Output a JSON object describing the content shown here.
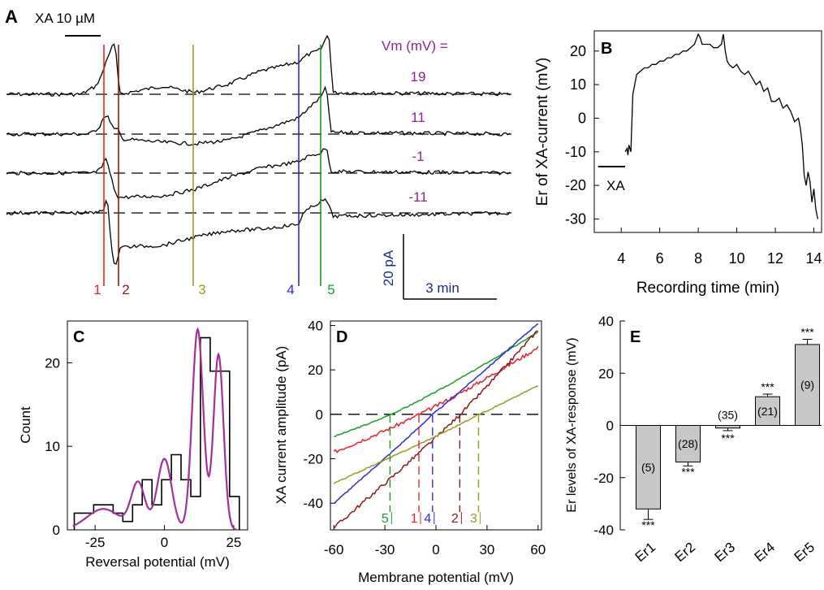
{
  "chart_data": [
    {
      "panel": "A",
      "type": "line",
      "title": "",
      "drug_label": "XA 10 µM",
      "vm_heading": "Vm (mV) =",
      "series": [
        {
          "vm": "19"
        },
        {
          "vm": "11"
        },
        {
          "vm": "-1"
        },
        {
          "vm": "-11"
        }
      ],
      "markers": [
        {
          "label": "1",
          "color": "#e8202a"
        },
        {
          "label": "2",
          "color": "#8b1a1a"
        },
        {
          "label": "3",
          "color": "#9a9a1c"
        },
        {
          "label": "4",
          "color": "#2b2bd8"
        },
        {
          "label": "5",
          "color": "#1a9a2a"
        }
      ],
      "scalebar": {
        "y_label": "20 pA",
        "x_label": "3 min"
      },
      "vm_color": "#8e248e",
      "scalebar_color": "#1a2a8a"
    },
    {
      "panel": "B",
      "type": "line",
      "xlabel": "Recording time (min)",
      "ylabel": "Er of XA-current (mV)",
      "xlim": [
        2.6,
        14.4
      ],
      "ylim": [
        -34,
        26
      ],
      "xticks": [
        "4",
        "6",
        "8",
        "10",
        "12",
        "14"
      ],
      "yticks": [
        "20",
        "10",
        "0",
        "-10",
        "-20",
        "-30"
      ],
      "drug_label": "XA",
      "drug_bar": [
        2.8,
        4.2
      ],
      "x": [
        4.2,
        4.3,
        4.35,
        4.4,
        4.45,
        4.5,
        4.6,
        4.8,
        5.0,
        5.2,
        5.4,
        5.6,
        5.8,
        6.0,
        6.2,
        6.4,
        6.6,
        6.8,
        7.0,
        7.2,
        7.4,
        7.6,
        7.8,
        8.0,
        8.1,
        8.2,
        8.3,
        8.4,
        8.6,
        8.8,
        9.0,
        9.2,
        9.3,
        9.4,
        9.5,
        9.6,
        9.8,
        10.0,
        10.2,
        10.4,
        10.6,
        10.8,
        11.0,
        11.2,
        11.4,
        11.6,
        11.8,
        12.0,
        12.2,
        12.4,
        12.6,
        12.8,
        13.0,
        13.2,
        13.3,
        13.4,
        13.5,
        13.6,
        13.7,
        13.8,
        13.9,
        14.0,
        14.1,
        14.2
      ],
      "y": [
        -10,
        -9,
        -11,
        -8,
        -9,
        -10,
        7,
        13,
        14,
        15,
        15,
        16,
        16,
        17,
        17,
        18,
        18,
        19,
        19,
        20,
        20,
        21,
        22,
        25,
        24,
        22,
        22,
        22,
        22,
        21,
        21,
        22,
        25,
        20,
        17,
        16,
        15,
        16,
        14,
        13,
        14,
        12,
        10,
        11,
        8,
        9,
        5,
        5,
        6,
        3,
        4,
        2,
        -1,
        0,
        -3,
        -8,
        -17,
        -20,
        -16,
        -19,
        -25,
        -21,
        -27,
        -30
      ]
    },
    {
      "panel": "C",
      "type": "bar",
      "xlabel": "Reversal potential (mV)",
      "ylabel": "Count",
      "xlim": [
        -35,
        30
      ],
      "ylim": [
        0,
        25
      ],
      "xticks": [
        "-25",
        "0",
        "25"
      ],
      "yticks": [
        "0",
        "10",
        "20"
      ],
      "bin_width": 3.5,
      "bin_starts": [
        -32.5,
        -29,
        -25.5,
        -22,
        -18.5,
        -15,
        -11.5,
        -8,
        -4.5,
        -1,
        2.5,
        6,
        9.5,
        13,
        16.5,
        20,
        23.5
      ],
      "counts": [
        2,
        2,
        3,
        3,
        2,
        1,
        3,
        6,
        3,
        6,
        9,
        6,
        4,
        23,
        19,
        19,
        4
      ],
      "fit_color": "#a0309a",
      "fit_components": [
        {
          "amp": 2.5,
          "mu": -22,
          "sigma": 6
        },
        {
          "amp": 5.5,
          "mu": -9.5,
          "sigma": 2.5
        },
        {
          "amp": 8.5,
          "mu": 0,
          "sigma": 2.6
        },
        {
          "amp": 24,
          "mu": 12,
          "sigma": 2
        },
        {
          "amp": 21,
          "mu": 19.5,
          "sigma": 1.8
        }
      ]
    },
    {
      "panel": "D",
      "type": "line",
      "xlabel": "Membrane potential (mV)",
      "ylabel": "XA current amplitude (pA)",
      "xlim": [
        -62,
        62
      ],
      "ylim": [
        -52,
        42
      ],
      "xticks": [
        "-60",
        "-30",
        "0",
        "30",
        "60"
      ],
      "yticks": [
        "40",
        "20",
        "0",
        "-20",
        "-40"
      ],
      "series": [
        {
          "label": "5",
          "color": "#1a9a2a",
          "er": -27,
          "y_start": -10,
          "y_end": 37,
          "curve": 0.35
        },
        {
          "label": "1",
          "color": "#e8202a",
          "er": -10,
          "y_start": -17,
          "y_end": 30,
          "curve": 0.25
        },
        {
          "label": "4",
          "color": "#2b2bd8",
          "er": -2,
          "y_start": -40,
          "y_end": 41,
          "curve": 0.1
        },
        {
          "label": "2",
          "color": "#8b1a1a",
          "er": 14,
          "y_start": -51,
          "y_end": 38,
          "curve": 0.15
        },
        {
          "label": "3",
          "color": "#9a9a1c",
          "er": 25,
          "y_start": -31,
          "y_end": 13,
          "curve": 0.2
        }
      ]
    },
    {
      "panel": "E",
      "type": "bar",
      "xlabel": "",
      "ylabel": "Er levels of XA-response (mV)",
      "ylim": [
        -40,
        40
      ],
      "yticks": [
        "40",
        "20",
        "0",
        "-20",
        "-40"
      ],
      "categories": [
        "Er1",
        "Er2",
        "Er3",
        "Er4",
        "Er5"
      ],
      "values": [
        -32,
        -14,
        -1,
        11,
        31
      ],
      "errors": [
        4,
        1.5,
        1,
        1,
        2
      ],
      "n": [
        "(5)",
        "(28)",
        "(35)",
        "(21)",
        "(9)"
      ],
      "sig": [
        "***",
        "***",
        "***",
        "***",
        "***"
      ]
    }
  ]
}
